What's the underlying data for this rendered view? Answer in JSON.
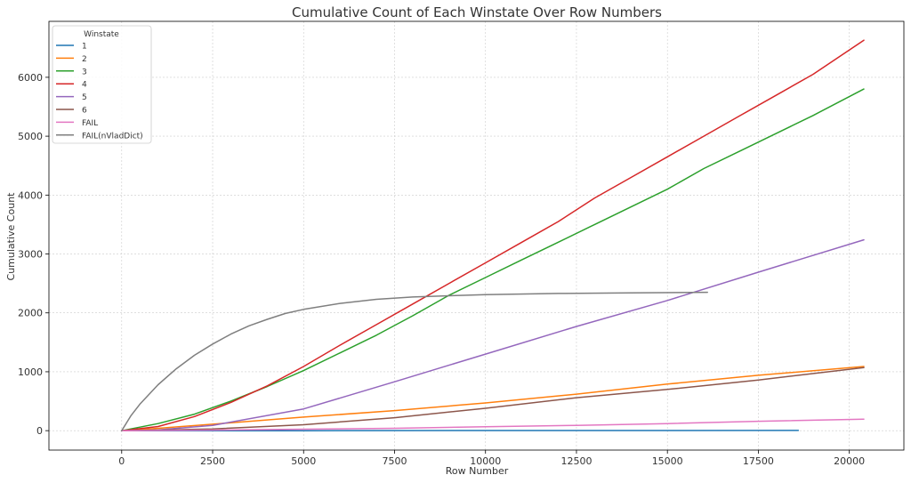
{
  "chart_data": {
    "type": "line",
    "title": "Cumulative Count of Each Winstate Over Row Numbers",
    "xlabel": "Row Number",
    "ylabel": "Cumulative Count",
    "xlim": [
      -2000,
      21500
    ],
    "ylim": [
      -330,
      6950
    ],
    "x_ticks": [
      0,
      2500,
      5000,
      7500,
      10000,
      12500,
      15000,
      17500,
      20000
    ],
    "x_tick_labels": [
      "0",
      "2500",
      "5000",
      "7500",
      "10000",
      "12500",
      "15000",
      "17500",
      "20000"
    ],
    "y_ticks": [
      0,
      1000,
      2000,
      3000,
      4000,
      5000,
      6000
    ],
    "y_tick_labels": [
      "0",
      "1000",
      "2000",
      "3000",
      "4000",
      "5000",
      "6000"
    ],
    "grid": true,
    "legend": {
      "title": "Winstate",
      "placement": "top-left"
    },
    "series": [
      {
        "name": "1",
        "color": "#1f77b4",
        "x": [
          0,
          2000,
          5000,
          10000,
          15000,
          18600
        ],
        "y": [
          0,
          0,
          0,
          2,
          3,
          4
        ]
      },
      {
        "name": "2",
        "color": "#ff7f0e",
        "x": [
          0,
          1000,
          2500,
          5000,
          7500,
          10000,
          12500,
          15000,
          17500,
          20400
        ],
        "y": [
          0,
          40,
          110,
          230,
          340,
          470,
          620,
          790,
          940,
          1090
        ]
      },
      {
        "name": "3",
        "color": "#2ca02c",
        "x": [
          0,
          1000,
          2000,
          3000,
          4000,
          5000,
          6000,
          7000,
          8000,
          9000,
          10000,
          11000,
          12000,
          13000,
          14000,
          15000,
          16000,
          17000,
          18000,
          19000,
          20400
        ],
        "y": [
          0,
          120,
          280,
          500,
          750,
          1020,
          1320,
          1620,
          1950,
          2300,
          2600,
          2900,
          3200,
          3500,
          3800,
          4100,
          4450,
          4750,
          5050,
          5350,
          5800
        ]
      },
      {
        "name": "4",
        "color": "#d62728",
        "x": [
          0,
          1000,
          2000,
          3000,
          4000,
          5000,
          6000,
          7000,
          8000,
          9000,
          10000,
          11000,
          12000,
          13000,
          14000,
          15000,
          16000,
          17000,
          18000,
          19000,
          20400
        ],
        "y": [
          0,
          70,
          240,
          480,
          760,
          1090,
          1450,
          1800,
          2150,
          2500,
          2850,
          3200,
          3550,
          3950,
          4300,
          4650,
          5000,
          5350,
          5700,
          6050,
          6630
        ]
      },
      {
        "name": "5",
        "color": "#9467bd",
        "x": [
          0,
          1000,
          2500,
          5000,
          7500,
          10000,
          12500,
          15000,
          17500,
          20400
        ],
        "y": [
          0,
          15,
          90,
          370,
          830,
          1300,
          1770,
          2210,
          2690,
          3240
        ]
      },
      {
        "name": "6",
        "color": "#8c564b",
        "x": [
          0,
          1000,
          2500,
          5000,
          7500,
          10000,
          12500,
          15000,
          17500,
          20400
        ],
        "y": [
          0,
          10,
          30,
          100,
          220,
          380,
          560,
          700,
          860,
          1070
        ]
      },
      {
        "name": "FAIL",
        "color": "#e377c2",
        "x": [
          0,
          2500,
          5000,
          7500,
          10000,
          12500,
          15000,
          17500,
          20400
        ],
        "y": [
          0,
          10,
          25,
          40,
          65,
          90,
          120,
          160,
          195
        ]
      },
      {
        "name": "FAIL(nVladDict)",
        "color": "#7f7f7f",
        "x": [
          0,
          250,
          500,
          1000,
          1500,
          2000,
          2500,
          3000,
          3500,
          4000,
          4500,
          5000,
          6000,
          7000,
          8000,
          9000,
          10000,
          12000,
          14000,
          16100
        ],
        "y": [
          0,
          250,
          450,
          780,
          1050,
          1280,
          1470,
          1640,
          1780,
          1890,
          1990,
          2060,
          2160,
          2230,
          2270,
          2290,
          2310,
          2330,
          2340,
          2350
        ]
      }
    ]
  }
}
